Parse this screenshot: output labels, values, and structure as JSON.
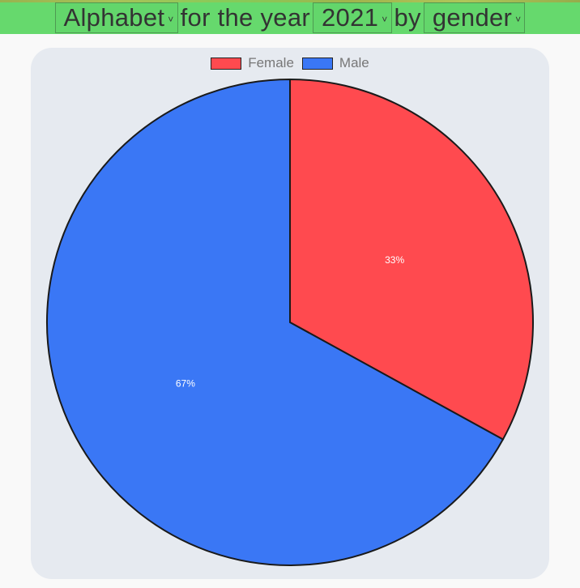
{
  "header": {
    "company_select": "Alphabet",
    "text_year": "for the year",
    "year_select": "2021",
    "text_by": "by",
    "group_select": "gender"
  },
  "colors": {
    "female": "#ff4a4f",
    "male": "#3a77f5",
    "outline": "#1a1a1a"
  },
  "chart_data": {
    "type": "pie",
    "categories": [
      "Female",
      "Male"
    ],
    "values": [
      33,
      67
    ],
    "labels": [
      "33%",
      "67%"
    ],
    "legend_position": "top"
  }
}
